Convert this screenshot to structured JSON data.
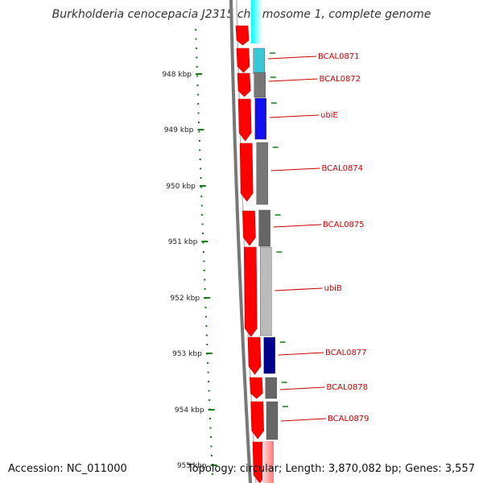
{
  "title": "Burkholderia cenocepacia J2315 chromosome 1, complete genome",
  "footer": {
    "accession": "Accession: NC_011000",
    "topology": "Topology: circular; Length: 3,870,082 bp; Genes: 3,557"
  },
  "colors": {
    "forward_cds": "#ff0000",
    "reverse_cds": "#666666",
    "label": "#cc0000",
    "tick": "#1a7a1a",
    "backbone": "#888888"
  },
  "axis": {
    "unit": "kbp",
    "ticks": [
      948,
      949,
      950,
      951,
      952,
      953,
      954,
      955
    ],
    "tick_labels": [
      "948 kbp",
      "949 kbp",
      "950 kbp",
      "951 kbp",
      "952 kbp",
      "953 kbp",
      "954 kbp",
      "955 kbp"
    ]
  },
  "genes": [
    {
      "label": "BCAL0871",
      "color": "#38c8d8"
    },
    {
      "label": "BCAL0872",
      "color": "#777777"
    },
    {
      "label": "ubiE",
      "color": "#1010f0"
    },
    {
      "label": "BCAL0874",
      "color": "#777777"
    },
    {
      "label": "BCAL0875",
      "color": "#666666"
    },
    {
      "label": "ubiB",
      "color": "#bbbbbb"
    },
    {
      "label": "BCAL0877",
      "color": "#00008b"
    },
    {
      "label": "BCAL0878",
      "color": "#666666"
    },
    {
      "label": "BCAL0879",
      "color": "#666666"
    }
  ]
}
